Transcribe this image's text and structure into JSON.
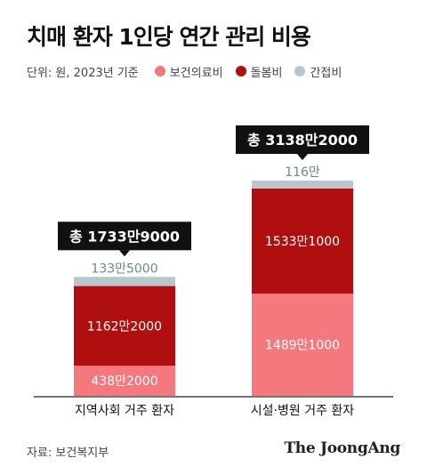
{
  "title": "치매 환자 1인당 연간 관리 비용",
  "unit_note": "단위: 원, 2023년 기준",
  "source": "자료: 보건복지부",
  "brand": "The JoongAng",
  "chart_data": {
    "type": "bar",
    "stacked": true,
    "categories": [
      "지역사회 거주 환자",
      "시설·병원 거주 환자"
    ],
    "series": [
      {
        "name": "보건의료비",
        "color": "#f5787f",
        "values": [
          4382000,
          14891000
        ],
        "labels": [
          "438만2000",
          "1489만1000"
        ],
        "label_color": "#ffffff"
      },
      {
        "name": "돌봄비",
        "color": "#b00f0f",
        "values": [
          11622000,
          15331000
        ],
        "labels": [
          "1162만2000",
          "1533만1000"
        ],
        "label_color": "#ffffff"
      },
      {
        "name": "간접비",
        "color": "#b9c6cd",
        "values": [
          1335000,
          1160000
        ],
        "labels": [
          "133만5000",
          "116만"
        ],
        "label_color": "#6f8795"
      }
    ],
    "totals": [
      "총 1733만9000",
      "총 3138만2000"
    ],
    "ylim": [
      0,
      31382000
    ],
    "grid": false,
    "legend_position": "top-left"
  }
}
